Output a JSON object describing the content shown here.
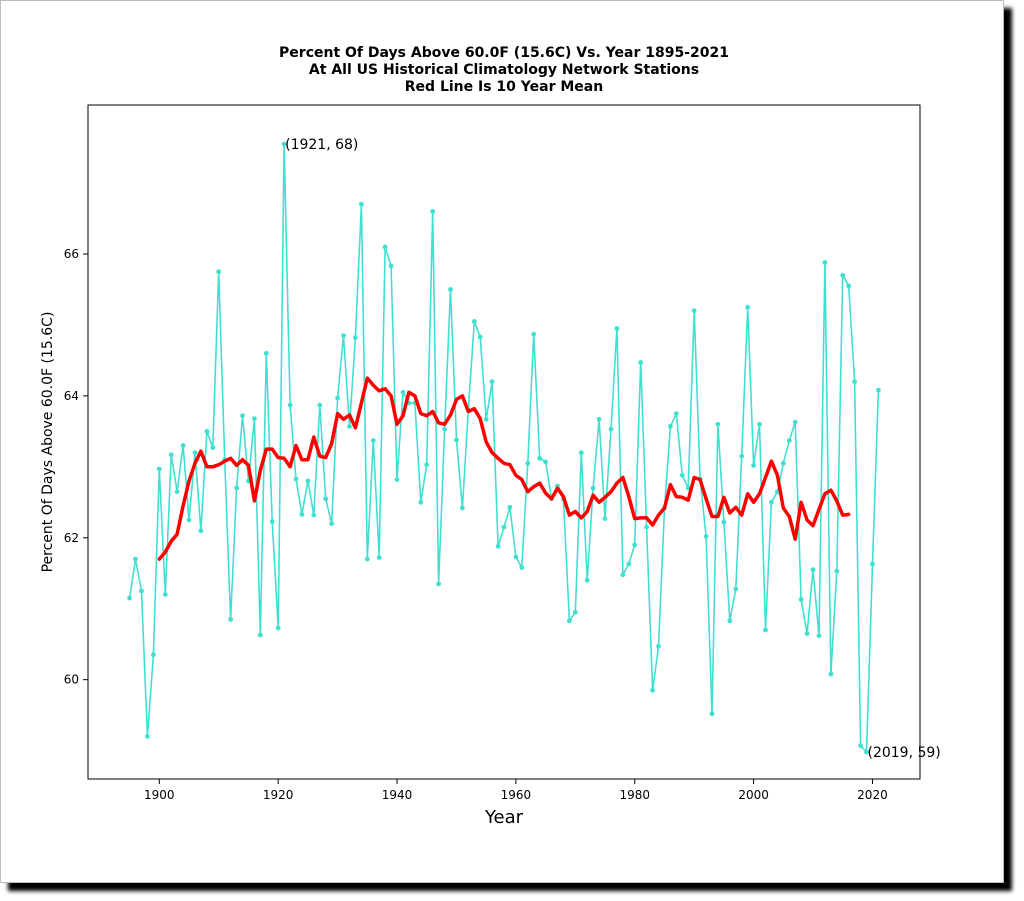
{
  "chart_data": {
    "type": "line",
    "title_lines": [
      "Percent Of Days Above 60.0F (15.6C) Vs. Year 1895-2021",
      "At All US Historical Climatology Network Stations",
      "Red Line Is 10 Year Mean"
    ],
    "xlabel": "Year",
    "ylabel": "Percent Of Days Above 60.0F (15.6C)",
    "xlim": [
      1888,
      2028
    ],
    "ylim": [
      58.6,
      68.1
    ],
    "xticks": [
      1900,
      1920,
      1940,
      1960,
      1980,
      2000,
      2020
    ],
    "yticks": [
      60,
      62,
      64,
      66
    ],
    "grid": false,
    "series": [
      {
        "color": "#40e0d0",
        "marker": "dot",
        "points": [
          [
            1895,
            61.15
          ],
          [
            1896,
            61.7
          ],
          [
            1897,
            61.25
          ],
          [
            1898,
            59.2
          ],
          [
            1899,
            60.35
          ],
          [
            1900,
            62.97
          ],
          [
            1901,
            61.2
          ],
          [
            1902,
            63.17
          ],
          [
            1903,
            62.65
          ],
          [
            1904,
            63.3
          ],
          [
            1905,
            62.25
          ],
          [
            1906,
            63.2
          ],
          [
            1907,
            62.1
          ],
          [
            1908,
            63.5
          ],
          [
            1909,
            63.27
          ],
          [
            1910,
            65.75
          ],
          [
            1911,
            63.1
          ],
          [
            1912,
            60.85
          ],
          [
            1913,
            62.7
          ],
          [
            1914,
            63.72
          ],
          [
            1915,
            62.8
          ],
          [
            1916,
            63.68
          ],
          [
            1917,
            60.63
          ],
          [
            1918,
            64.6
          ],
          [
            1919,
            62.23
          ],
          [
            1920,
            60.73
          ],
          [
            1921,
            67.55
          ],
          [
            1922,
            63.87
          ],
          [
            1923,
            62.83
          ],
          [
            1924,
            62.33
          ],
          [
            1925,
            62.8
          ],
          [
            1926,
            62.32
          ],
          [
            1927,
            63.87
          ],
          [
            1928,
            62.55
          ],
          [
            1929,
            62.2
          ],
          [
            1930,
            63.97
          ],
          [
            1931,
            64.85
          ],
          [
            1932,
            63.57
          ],
          [
            1933,
            64.82
          ],
          [
            1934,
            66.7
          ],
          [
            1935,
            61.7
          ],
          [
            1936,
            63.37
          ],
          [
            1937,
            61.72
          ],
          [
            1938,
            66.1
          ],
          [
            1939,
            65.83
          ],
          [
            1940,
            62.82
          ],
          [
            1941,
            64.05
          ],
          [
            1942,
            63.9
          ],
          [
            1943,
            63.9
          ],
          [
            1944,
            62.5
          ],
          [
            1945,
            63.03
          ],
          [
            1946,
            66.6
          ],
          [
            1947,
            61.35
          ],
          [
            1948,
            63.53
          ],
          [
            1949,
            65.5
          ],
          [
            1950,
            63.38
          ],
          [
            1951,
            62.42
          ],
          [
            1952,
            63.8
          ],
          [
            1953,
            65.05
          ],
          [
            1954,
            64.83
          ],
          [
            1955,
            63.67
          ],
          [
            1956,
            64.2
          ],
          [
            1957,
            61.88
          ],
          [
            1958,
            62.15
          ],
          [
            1959,
            62.43
          ],
          [
            1960,
            61.73
          ],
          [
            1961,
            61.58
          ],
          [
            1962,
            63.05
          ],
          [
            1963,
            64.87
          ],
          [
            1964,
            63.12
          ],
          [
            1965,
            63.07
          ],
          [
            1966,
            62.55
          ],
          [
            1967,
            62.73
          ],
          [
            1968,
            62.55
          ],
          [
            1969,
            60.83
          ],
          [
            1970,
            60.95
          ],
          [
            1971,
            63.2
          ],
          [
            1972,
            61.4
          ],
          [
            1973,
            62.7
          ],
          [
            1974,
            63.67
          ],
          [
            1975,
            62.27
          ],
          [
            1976,
            63.53
          ],
          [
            1977,
            64.95
          ],
          [
            1978,
            61.48
          ],
          [
            1979,
            61.63
          ],
          [
            1980,
            61.9
          ],
          [
            1981,
            64.47
          ],
          [
            1982,
            62.15
          ],
          [
            1983,
            59.85
          ],
          [
            1984,
            60.47
          ],
          [
            1985,
            62.42
          ],
          [
            1986,
            63.57
          ],
          [
            1987,
            63.75
          ],
          [
            1988,
            62.88
          ],
          [
            1989,
            62.7
          ],
          [
            1990,
            65.2
          ],
          [
            1991,
            62.83
          ],
          [
            1992,
            62.02
          ],
          [
            1993,
            59.52
          ],
          [
            1994,
            63.6
          ],
          [
            1995,
            62.22
          ],
          [
            1996,
            60.83
          ],
          [
            1997,
            61.28
          ],
          [
            1998,
            63.15
          ],
          [
            1999,
            65.25
          ],
          [
            2000,
            63.02
          ],
          [
            2001,
            63.6
          ],
          [
            2002,
            60.7
          ],
          [
            2003,
            62.5
          ],
          [
            2004,
            62.65
          ],
          [
            2005,
            63.05
          ],
          [
            2006,
            63.37
          ],
          [
            2007,
            63.63
          ],
          [
            2008,
            61.13
          ],
          [
            2009,
            60.65
          ],
          [
            2010,
            61.55
          ],
          [
            2011,
            60.62
          ],
          [
            2012,
            65.88
          ],
          [
            2013,
            60.08
          ],
          [
            2014,
            61.53
          ],
          [
            2015,
            65.7
          ],
          [
            2016,
            65.55
          ],
          [
            2017,
            64.2
          ],
          [
            2018,
            59.07
          ],
          [
            2019,
            58.98
          ],
          [
            2020,
            61.63
          ],
          [
            2021,
            64.08
          ]
        ]
      },
      {
        "color": "#ff0000",
        "marker": "none",
        "points": [
          [
            1900,
            61.7
          ],
          [
            1901,
            61.8
          ],
          [
            1902,
            61.95
          ],
          [
            1903,
            62.05
          ],
          [
            1904,
            62.45
          ],
          [
            1905,
            62.8
          ],
          [
            1906,
            63.05
          ],
          [
            1907,
            63.22
          ],
          [
            1908,
            63.0
          ],
          [
            1909,
            63.0
          ],
          [
            1910,
            63.03
          ],
          [
            1911,
            63.08
          ],
          [
            1912,
            63.12
          ],
          [
            1913,
            63.02
          ],
          [
            1914,
            63.1
          ],
          [
            1915,
            63.02
          ],
          [
            1916,
            62.52
          ],
          [
            1917,
            62.95
          ],
          [
            1918,
            63.25
          ],
          [
            1919,
            63.25
          ],
          [
            1920,
            63.13
          ],
          [
            1921,
            63.12
          ],
          [
            1922,
            63.0
          ],
          [
            1923,
            63.3
          ],
          [
            1924,
            63.1
          ],
          [
            1925,
            63.1
          ],
          [
            1926,
            63.42
          ],
          [
            1927,
            63.15
          ],
          [
            1928,
            63.13
          ],
          [
            1929,
            63.33
          ],
          [
            1930,
            63.75
          ],
          [
            1931,
            63.67
          ],
          [
            1932,
            63.73
          ],
          [
            1933,
            63.55
          ],
          [
            1934,
            63.9
          ],
          [
            1935,
            64.25
          ],
          [
            1936,
            64.15
          ],
          [
            1937,
            64.07
          ],
          [
            1938,
            64.1
          ],
          [
            1939,
            64.0
          ],
          [
            1940,
            63.6
          ],
          [
            1941,
            63.72
          ],
          [
            1942,
            64.05
          ],
          [
            1943,
            64.0
          ],
          [
            1944,
            63.75
          ],
          [
            1945,
            63.72
          ],
          [
            1946,
            63.78
          ],
          [
            1947,
            63.62
          ],
          [
            1948,
            63.6
          ],
          [
            1949,
            63.73
          ],
          [
            1950,
            63.95
          ],
          [
            1951,
            64.0
          ],
          [
            1952,
            63.78
          ],
          [
            1953,
            63.82
          ],
          [
            1954,
            63.68
          ],
          [
            1955,
            63.35
          ],
          [
            1956,
            63.2
          ],
          [
            1957,
            63.12
          ],
          [
            1958,
            63.05
          ],
          [
            1959,
            63.03
          ],
          [
            1960,
            62.88
          ],
          [
            1961,
            62.82
          ],
          [
            1962,
            62.65
          ],
          [
            1963,
            62.72
          ],
          [
            1964,
            62.77
          ],
          [
            1965,
            62.63
          ],
          [
            1966,
            62.55
          ],
          [
            1967,
            62.7
          ],
          [
            1968,
            62.58
          ],
          [
            1969,
            62.32
          ],
          [
            1970,
            62.37
          ],
          [
            1971,
            62.28
          ],
          [
            1972,
            62.37
          ],
          [
            1973,
            62.6
          ],
          [
            1974,
            62.5
          ],
          [
            1975,
            62.57
          ],
          [
            1976,
            62.65
          ],
          [
            1977,
            62.77
          ],
          [
            1978,
            62.85
          ],
          [
            1979,
            62.58
          ],
          [
            1980,
            62.27
          ],
          [
            1981,
            62.28
          ],
          [
            1982,
            62.28
          ],
          [
            1983,
            62.18
          ],
          [
            1984,
            62.32
          ],
          [
            1985,
            62.42
          ],
          [
            1986,
            62.75
          ],
          [
            1987,
            62.58
          ],
          [
            1988,
            62.57
          ],
          [
            1989,
            62.53
          ],
          [
            1990,
            62.85
          ],
          [
            1991,
            62.82
          ],
          [
            1992,
            62.55
          ],
          [
            1993,
            62.3
          ],
          [
            1994,
            62.3
          ],
          [
            1995,
            62.57
          ],
          [
            1996,
            62.35
          ],
          [
            1997,
            62.43
          ],
          [
            1998,
            62.32
          ],
          [
            1999,
            62.62
          ],
          [
            2000,
            62.5
          ],
          [
            2001,
            62.62
          ],
          [
            2002,
            62.85
          ],
          [
            2003,
            63.08
          ],
          [
            2004,
            62.88
          ],
          [
            2005,
            62.42
          ],
          [
            2006,
            62.3
          ],
          [
            2007,
            61.98
          ],
          [
            2008,
            62.5
          ],
          [
            2009,
            62.25
          ],
          [
            2010,
            62.17
          ],
          [
            2011,
            62.4
          ],
          [
            2012,
            62.62
          ],
          [
            2013,
            62.67
          ],
          [
            2014,
            62.52
          ],
          [
            2015,
            62.32
          ],
          [
            2016,
            62.33
          ]
        ]
      }
    ],
    "annotations": [
      {
        "text": "(1921, 68)",
        "x": 1921,
        "y": 67.55
      },
      {
        "text": "(2019, 59)",
        "x": 2019,
        "y": 58.98
      }
    ]
  }
}
